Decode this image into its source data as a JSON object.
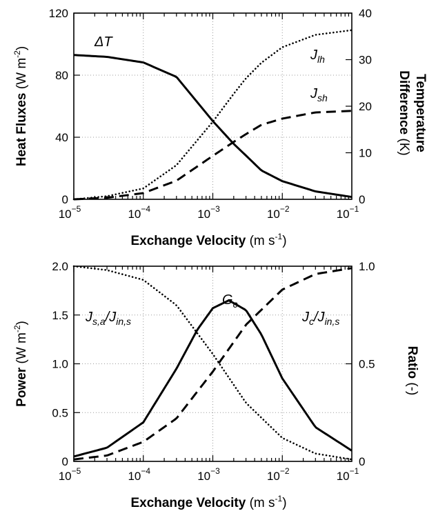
{
  "chart_data": [
    {
      "type": "line",
      "x_scale": "log",
      "xlim": [
        1e-05,
        0.1
      ],
      "xticks": [
        1e-05,
        0.0001,
        0.001,
        0.01,
        0.1
      ],
      "xtick_labels": [
        {
          "base": "10",
          "exp": "−5"
        },
        {
          "base": "10",
          "exp": "−4"
        },
        {
          "base": "10",
          "exp": "−3"
        },
        {
          "base": "10",
          "exp": "−2"
        },
        {
          "base": "10",
          "exp": "−1"
        }
      ],
      "xlabel": {
        "bold": "Exchange Velocity",
        "unit": " (m s",
        "sup": "-1",
        "close": ")"
      },
      "ylabel_left": {
        "bold": "Heat Fluxes",
        "unit": " (W m",
        "sup": "-2",
        "close": ")"
      },
      "ylim_left": [
        0,
        120
      ],
      "yticks_left": [
        0,
        40,
        80,
        120
      ],
      "ylabel_right": {
        "bold": "Temperature",
        "bold2": "Difference",
        "unit": " (K)"
      },
      "ylim_right": [
        0,
        40
      ],
      "yticks_right": [
        0,
        10,
        20,
        30,
        40
      ],
      "grid": true,
      "series": [
        {
          "name": "ΔT",
          "label_main": "ΔT",
          "label_sub": "",
          "axis": "right",
          "style": "solid",
          "x": [
            1e-05,
            3e-05,
            0.0001,
            0.0003,
            0.001,
            0.002,
            0.003,
            0.005,
            0.01,
            0.03,
            0.1
          ],
          "y": [
            31,
            30.6,
            29.4,
            26.3,
            16.8,
            11.9,
            9.4,
            6.2,
            3.9,
            1.7,
            0.5
          ]
        },
        {
          "name": "J_lh",
          "label_main": "J",
          "label_sub": "lh",
          "axis": "left",
          "style": "dotted",
          "x": [
            1e-05,
            3e-05,
            0.0001,
            0.0003,
            0.001,
            0.002,
            0.003,
            0.005,
            0.01,
            0.03,
            0.1
          ],
          "y": [
            0,
            2,
            7,
            22,
            50,
            68,
            78,
            88,
            98,
            106,
            109
          ]
        },
        {
          "name": "J_sh",
          "label_main": "J",
          "label_sub": "sh",
          "axis": "left",
          "style": "dashed",
          "x": [
            1e-05,
            3e-05,
            0.0001,
            0.0003,
            0.001,
            0.002,
            0.003,
            0.005,
            0.01,
            0.03,
            0.1
          ],
          "y": [
            0,
            1,
            4,
            12,
            28,
            37,
            42,
            48,
            52,
            56,
            57
          ]
        }
      ]
    },
    {
      "type": "line",
      "x_scale": "log",
      "xlim": [
        1e-05,
        0.1
      ],
      "xticks": [
        1e-05,
        0.0001,
        0.001,
        0.01,
        0.1
      ],
      "xtick_labels": [
        {
          "base": "10",
          "exp": "−5"
        },
        {
          "base": "10",
          "exp": "−4"
        },
        {
          "base": "10",
          "exp": "−3"
        },
        {
          "base": "10",
          "exp": "−2"
        },
        {
          "base": "10",
          "exp": "−1"
        }
      ],
      "xlabel": {
        "bold": "Exchange Velocity",
        "unit": " (m s",
        "sup": "-1",
        "close": ")"
      },
      "ylabel_left": {
        "bold": "Power",
        "unit": " (W m",
        "sup": "-2",
        "close": ")"
      },
      "ylim_left": [
        0,
        2.0
      ],
      "yticks_left": [
        0,
        0.5,
        1.0,
        1.5,
        2.0
      ],
      "ytick_labels_left": [
        "0",
        "0.5",
        "1.0",
        "1.5",
        "2.0"
      ],
      "ylabel_right": {
        "bold": "Ratio",
        "unit": " (-)"
      },
      "ylim_right": [
        0,
        1.0
      ],
      "yticks_right": [
        0,
        0.5,
        1.0
      ],
      "ytick_labels_right": [
        "0",
        "0.5",
        "1.0"
      ],
      "grid": true,
      "series": [
        {
          "name": "G_c",
          "label_main": "G",
          "label_sub": "c",
          "axis": "left",
          "style": "solid",
          "x": [
            1e-05,
            3e-05,
            0.0001,
            0.0003,
            0.0006,
            0.001,
            0.0017,
            0.003,
            0.005,
            0.01,
            0.03,
            0.1
          ],
          "y": [
            0.05,
            0.14,
            0.4,
            0.95,
            1.35,
            1.57,
            1.65,
            1.55,
            1.3,
            0.85,
            0.35,
            0.11
          ]
        },
        {
          "name": "J_s,a/J_in,s",
          "label_main": "J",
          "label_sub": "s,a",
          "label_main2": "/J",
          "label_sub2": "in,s",
          "axis": "right",
          "style": "dotted",
          "x": [
            1e-05,
            3e-05,
            0.0001,
            0.0003,
            0.001,
            0.003,
            0.01,
            0.03,
            0.1
          ],
          "y": [
            1.0,
            0.98,
            0.93,
            0.8,
            0.55,
            0.3,
            0.12,
            0.04,
            0.01
          ]
        },
        {
          "name": "J_c/J_in,s",
          "label_main": "J",
          "label_sub": "c",
          "label_main2": "/J",
          "label_sub2": "in,s",
          "axis": "right",
          "style": "dashed",
          "x": [
            1e-05,
            3e-05,
            0.0001,
            0.0003,
            0.001,
            0.003,
            0.01,
            0.03,
            0.1
          ],
          "y": [
            0.01,
            0.03,
            0.1,
            0.22,
            0.46,
            0.7,
            0.88,
            0.96,
            0.99
          ]
        }
      ]
    }
  ]
}
